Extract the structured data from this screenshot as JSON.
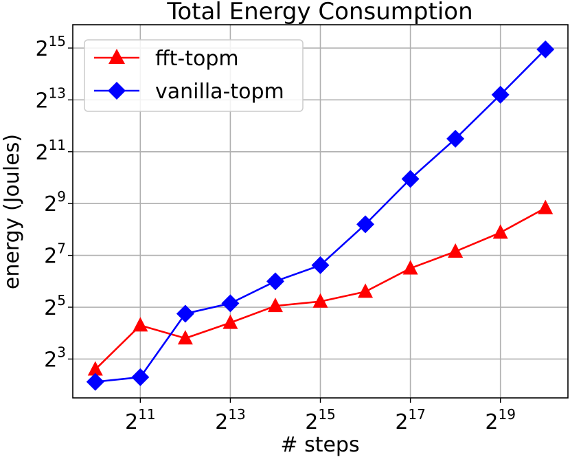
{
  "chart_data": {
    "type": "line",
    "title": "Total Energy Consumption",
    "xlabel": "# steps",
    "ylabel": "energy (Joules)",
    "x_scale": "log2",
    "y_scale": "log2",
    "x_exponents": [
      10,
      11,
      12,
      13,
      14,
      15,
      16,
      17,
      18,
      19,
      20
    ],
    "xlim_exponent": [
      9.5,
      20.5
    ],
    "ylim_exponent": [
      1.5,
      15.9
    ],
    "x_ticks": [
      {
        "exp": 11,
        "base": "2",
        "sup": "11"
      },
      {
        "exp": 13,
        "base": "2",
        "sup": "13"
      },
      {
        "exp": 15,
        "base": "2",
        "sup": "15"
      },
      {
        "exp": 17,
        "base": "2",
        "sup": "17"
      },
      {
        "exp": 19,
        "base": "2",
        "sup": "19"
      }
    ],
    "y_ticks": [
      {
        "exp": 3,
        "base": "2",
        "sup": "3"
      },
      {
        "exp": 5,
        "base": "2",
        "sup": "5"
      },
      {
        "exp": 7,
        "base": "2",
        "sup": "7"
      },
      {
        "exp": 9,
        "base": "2",
        "sup": "9"
      },
      {
        "exp": 11,
        "base": "2",
        "sup": "11"
      },
      {
        "exp": 13,
        "base": "2",
        "sup": "13"
      },
      {
        "exp": 15,
        "base": "2",
        "sup": "15"
      }
    ],
    "grid": true,
    "legend_position": "top-left",
    "series": [
      {
        "name": "fft-topm",
        "color": "#ff0000",
        "marker": "triangle",
        "y_exponents": [
          2.6,
          4.3,
          3.8,
          4.4,
          5.05,
          5.22,
          5.6,
          6.5,
          7.15,
          7.88,
          8.83
        ]
      },
      {
        "name": "vanilla-topm",
        "color": "#0000ff",
        "marker": "diamond",
        "y_exponents": [
          2.12,
          2.3,
          4.75,
          5.15,
          6.0,
          6.62,
          8.2,
          9.95,
          11.5,
          13.2,
          14.95
        ]
      }
    ]
  }
}
